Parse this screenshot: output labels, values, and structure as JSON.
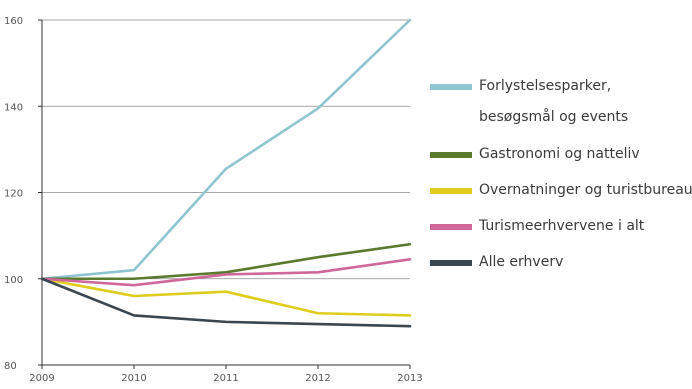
{
  "chart_data": {
    "type": "line",
    "x": [
      2009,
      2010,
      2011,
      2012,
      2013
    ],
    "xticks": [
      "2009",
      "2010",
      "2011",
      "2012",
      "2013"
    ],
    "yticks": [
      "80",
      "100",
      "120",
      "140",
      "160"
    ],
    "ylim": [
      80,
      160
    ],
    "grid": "horizontal",
    "legend_position": "right",
    "series": [
      {
        "name": "Forlystelsesparker, besøgsmål og events",
        "legend_lines": [
          "Forlystelsesparker,",
          "besøgsmål og events"
        ],
        "color": "#8fc4d1",
        "values": [
          100,
          102,
          125.5,
          139.5,
          160
        ]
      },
      {
        "name": "Gastronomi og natteliv",
        "legend_lines": [
          "Gastronomi og natteliv"
        ],
        "color": "#5a7a2e",
        "values": [
          100,
          100,
          101.5,
          105,
          108
        ]
      },
      {
        "name": "Overnatninger og turistbureauer",
        "legend_lines": [
          "Overnatninger og turistbureauer"
        ],
        "color": "#e0cc1c",
        "values": [
          100,
          96,
          97,
          92,
          91.5
        ]
      },
      {
        "name": "Turismeerhvervene i alt",
        "legend_lines": [
          "Turismeerhvervene i alt"
        ],
        "color": "#d0679b",
        "values": [
          100,
          98.5,
          101,
          101.5,
          104.5
        ]
      },
      {
        "name": "Alle erhverv",
        "legend_lines": [
          "Alle erhverv"
        ],
        "color": "#3a4750",
        "values": [
          100,
          91.5,
          90,
          89.5,
          89
        ]
      }
    ]
  }
}
